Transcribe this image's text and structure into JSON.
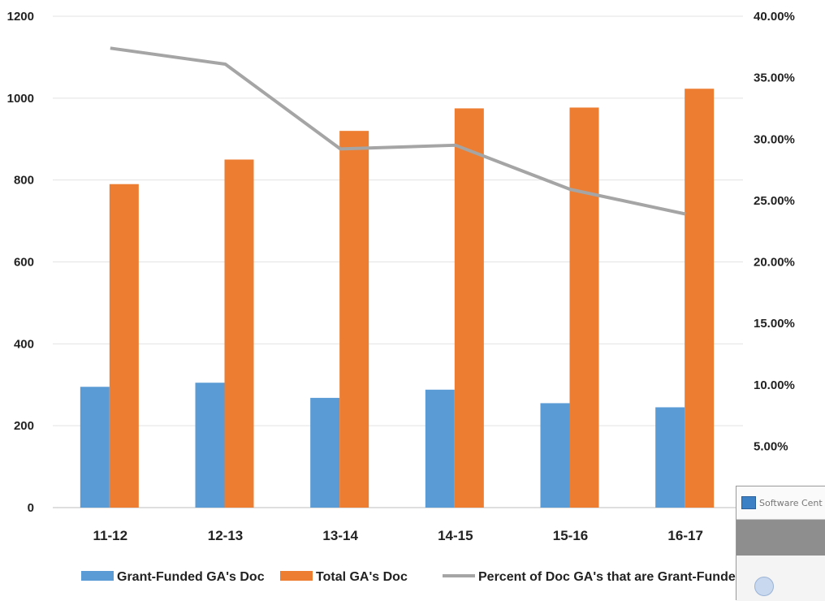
{
  "chart_data": {
    "type": "bar",
    "categories": [
      "11-12",
      "12-13",
      "13-14",
      "14-15",
      "15-16",
      "16-17"
    ],
    "series": [
      {
        "name": "Grant-Funded GA's Doc",
        "kind": "bar",
        "axis": "left",
        "color": "#5b9bd5",
        "values": [
          295,
          305,
          268,
          288,
          255,
          245
        ]
      },
      {
        "name": "Total GA's Doc",
        "kind": "bar",
        "axis": "left",
        "color": "#ed7d31",
        "values": [
          790,
          850,
          920,
          975,
          977,
          1023
        ]
      },
      {
        "name": "Percent of Doc GA's that are Grant-Funded",
        "kind": "line",
        "axis": "right",
        "color": "#a5a5a5",
        "values": [
          37.4,
          36.1,
          29.2,
          29.5,
          25.9,
          23.9
        ]
      }
    ],
    "y_left": {
      "min": 0,
      "max": 1200,
      "ticks": [
        0,
        200,
        400,
        600,
        800,
        1000,
        1200
      ]
    },
    "y_right": {
      "min": 0,
      "max": 40,
      "ticks": [
        5,
        10,
        15,
        20,
        25,
        30,
        35,
        40
      ],
      "tick_labels": [
        "5.00%",
        "10.00%",
        "15.00%",
        "20.00%",
        "25.00%",
        "30.00%",
        "35.00%",
        "40.00%"
      ]
    },
    "grid": true,
    "legend_position": "bottom"
  },
  "popup": {
    "title": "Software Cent"
  }
}
